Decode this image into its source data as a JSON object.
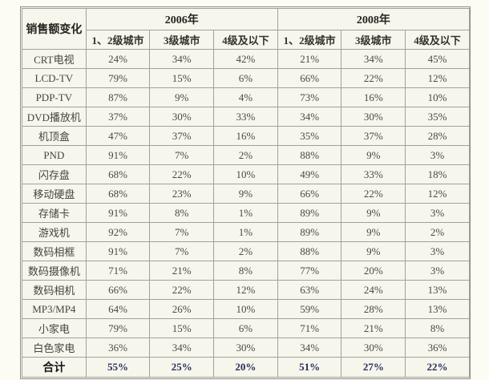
{
  "table": {
    "corner_label": "销售额变化",
    "year_groups": [
      {
        "label": "2006年",
        "columns": [
          "1、2级城市",
          "3级城市",
          "4级及以下"
        ]
      },
      {
        "label": "2008年",
        "columns": [
          "1、2级城市",
          "3级城市",
          "4级及以下"
        ]
      }
    ],
    "rows": [
      {
        "label": "CRT电视",
        "values": [
          "24%",
          "34%",
          "42%",
          "21%",
          "34%",
          "45%"
        ]
      },
      {
        "label": "LCD-TV",
        "values": [
          "79%",
          "15%",
          "6%",
          "66%",
          "22%",
          "12%"
        ]
      },
      {
        "label": "PDP-TV",
        "values": [
          "87%",
          "9%",
          "4%",
          "73%",
          "16%",
          "10%"
        ]
      },
      {
        "label": "DVD播放机",
        "values": [
          "37%",
          "30%",
          "33%",
          "34%",
          "30%",
          "35%"
        ]
      },
      {
        "label": "机顶盒",
        "values": [
          "47%",
          "37%",
          "16%",
          "35%",
          "37%",
          "28%"
        ]
      },
      {
        "label": "PND",
        "values": [
          "91%",
          "7%",
          "2%",
          "88%",
          "9%",
          "3%"
        ]
      },
      {
        "label": "闪存盘",
        "values": [
          "68%",
          "22%",
          "10%",
          "49%",
          "33%",
          "18%"
        ]
      },
      {
        "label": "移动硬盘",
        "values": [
          "68%",
          "23%",
          "9%",
          "66%",
          "22%",
          "12%"
        ]
      },
      {
        "label": "存储卡",
        "values": [
          "91%",
          "8%",
          "1%",
          "89%",
          "9%",
          "3%"
        ]
      },
      {
        "label": "游戏机",
        "values": [
          "92%",
          "7%",
          "1%",
          "89%",
          "9%",
          "2%"
        ]
      },
      {
        "label": "数码相框",
        "values": [
          "91%",
          "7%",
          "2%",
          "88%",
          "9%",
          "3%"
        ]
      },
      {
        "label": "数码摄像机",
        "values": [
          "71%",
          "21%",
          "8%",
          "77%",
          "20%",
          "3%"
        ]
      },
      {
        "label": "数码相机",
        "values": [
          "66%",
          "22%",
          "12%",
          "63%",
          "24%",
          "13%"
        ]
      },
      {
        "label": "MP3/MP4",
        "values": [
          "64%",
          "26%",
          "10%",
          "59%",
          "28%",
          "13%"
        ]
      },
      {
        "label": "小家电",
        "values": [
          "79%",
          "15%",
          "6%",
          "71%",
          "21%",
          "8%"
        ]
      },
      {
        "label": "白色家电",
        "values": [
          "36%",
          "34%",
          "30%",
          "34%",
          "30%",
          "36%"
        ]
      }
    ],
    "total_row": {
      "label": "合计",
      "values": [
        "55%",
        "25%",
        "20%",
        "51%",
        "27%",
        "22%"
      ]
    }
  },
  "colors": {
    "page_background": "#fcfcf5",
    "cell_background": "#f6f6ec",
    "border": "#a1a197",
    "outer_frame": "#8f8f87",
    "body_text": "#4a4a42",
    "header_text": "#262420",
    "total_value_text": "#2b2b60"
  },
  "chart_data": {
    "type": "table",
    "title": "销售额变化",
    "column_groups": [
      "2006年",
      "2008年"
    ],
    "columns": [
      "2006年 1、2级城市",
      "2006年 3级城市",
      "2006年 4级及以下",
      "2008年 1、2级城市",
      "2008年 3级城市",
      "2008年 4级及以下"
    ],
    "categories": [
      "CRT电视",
      "LCD-TV",
      "PDP-TV",
      "DVD播放机",
      "机顶盒",
      "PND",
      "闪存盘",
      "移动硬盘",
      "存储卡",
      "游戏机",
      "数码相框",
      "数码摄像机",
      "数码相机",
      "MP3/MP4",
      "小家电",
      "白色家电",
      "合计"
    ],
    "values_percent": [
      [
        24,
        34,
        42,
        21,
        34,
        45
      ],
      [
        79,
        15,
        6,
        66,
        22,
        12
      ],
      [
        87,
        9,
        4,
        73,
        16,
        10
      ],
      [
        37,
        30,
        33,
        34,
        30,
        35
      ],
      [
        47,
        37,
        16,
        35,
        37,
        28
      ],
      [
        91,
        7,
        2,
        88,
        9,
        3
      ],
      [
        68,
        22,
        10,
        49,
        33,
        18
      ],
      [
        68,
        23,
        9,
        66,
        22,
        12
      ],
      [
        91,
        8,
        1,
        89,
        9,
        3
      ],
      [
        92,
        7,
        1,
        89,
        9,
        2
      ],
      [
        91,
        7,
        2,
        88,
        9,
        3
      ],
      [
        71,
        21,
        8,
        77,
        20,
        3
      ],
      [
        66,
        22,
        12,
        63,
        24,
        13
      ],
      [
        64,
        26,
        10,
        59,
        28,
        13
      ],
      [
        79,
        15,
        6,
        71,
        21,
        8
      ],
      [
        36,
        34,
        30,
        34,
        30,
        36
      ],
      [
        55,
        25,
        20,
        51,
        27,
        22
      ]
    ]
  }
}
